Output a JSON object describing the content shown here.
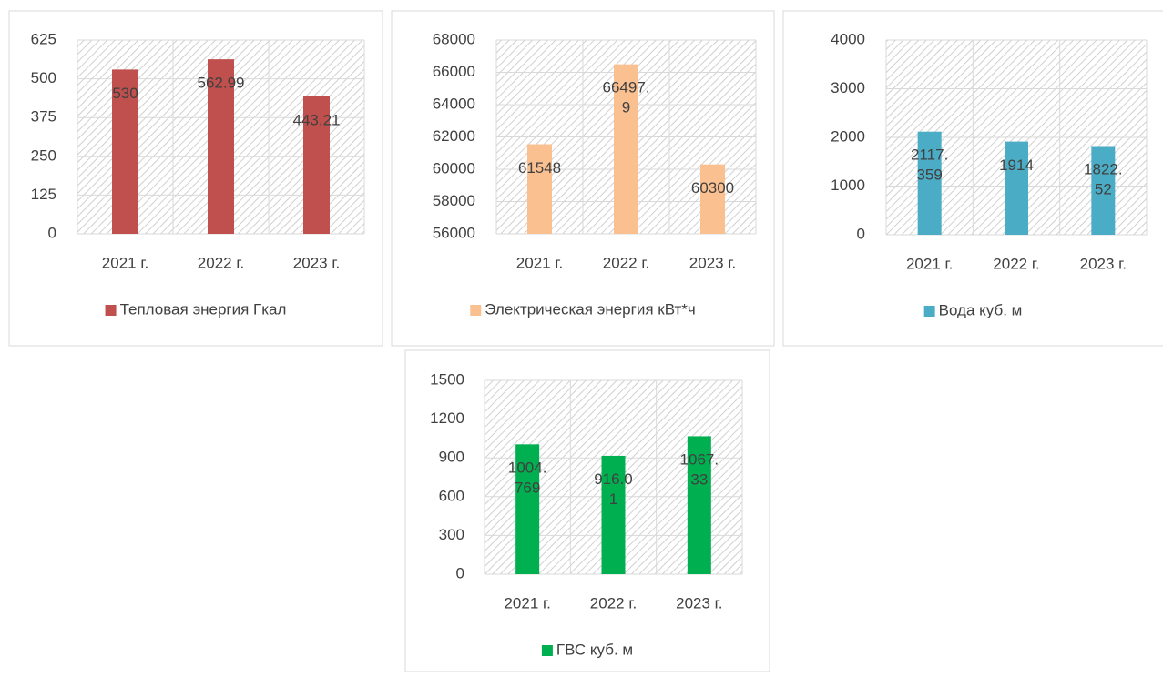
{
  "chart_data": [
    {
      "type": "bar",
      "categories": [
        "2021 г.",
        "2022 г.",
        "2023 г."
      ],
      "series": [
        {
          "name": "Тепловая энергия Гкал",
          "color": "#c0504d",
          "values": [
            530,
            562.99,
            443.21
          ]
        }
      ],
      "ylim": [
        0,
        625
      ],
      "yticks": [
        0,
        125,
        250,
        375,
        500,
        625
      ],
      "grid": true
    },
    {
      "type": "bar",
      "categories": [
        "2021 г.",
        "2022 г.",
        "2023 г."
      ],
      "series": [
        {
          "name": "Электрическая энергия кВт*ч",
          "color": "#fac090",
          "values": [
            61548,
            66497.9,
            60300
          ]
        }
      ],
      "ylim": [
        56000,
        68000
      ],
      "yticks": [
        56000,
        58000,
        60000,
        62000,
        64000,
        66000,
        68000
      ],
      "grid": true
    },
    {
      "type": "bar",
      "categories": [
        "2021 г.",
        "2022 г.",
        "2023 г."
      ],
      "series": [
        {
          "name": "Вода куб. м",
          "color": "#4bacc6",
          "values": [
            2117.359,
            1914,
            1822.52
          ]
        }
      ],
      "ylim": [
        0,
        4000
      ],
      "yticks": [
        0,
        1000,
        2000,
        3000,
        4000
      ],
      "grid": true
    },
    {
      "type": "bar",
      "categories": [
        "2021 г.",
        "2022 г.",
        "2023 г."
      ],
      "series": [
        {
          "name": "ГВС куб. м",
          "color": "#00b050",
          "values": [
            1004.769,
            916.01,
            1067.33
          ]
        }
      ],
      "ylim": [
        0,
        1500
      ],
      "yticks": [
        0,
        300,
        600,
        900,
        1200,
        1500
      ],
      "grid": true
    }
  ]
}
